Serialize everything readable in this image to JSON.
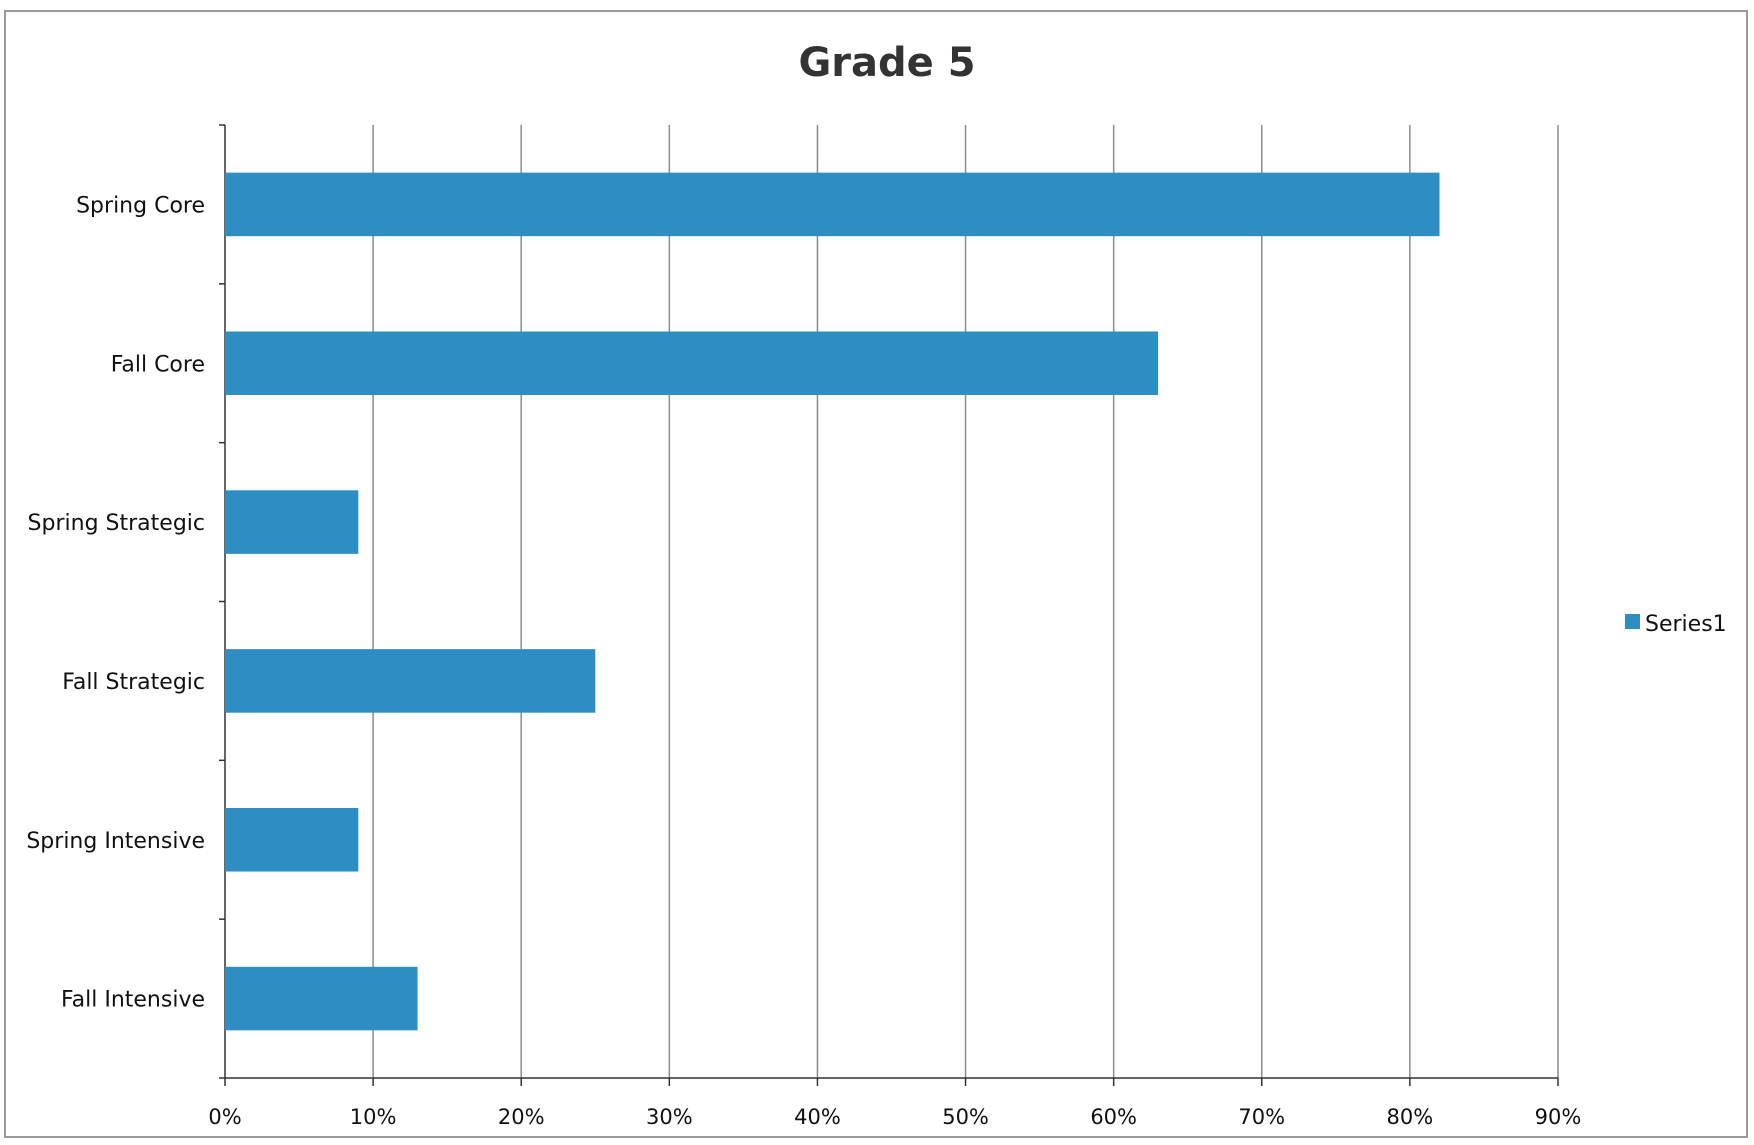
{
  "chart_data": {
    "type": "bar",
    "orientation": "horizontal",
    "title": "Grade 5",
    "xlabel": "",
    "ylabel": "",
    "categories": [
      "Spring Core",
      "Fall Core",
      "Spring Strategic",
      "Fall Strategic",
      "Spring Intensive",
      "Fall Intensive"
    ],
    "series": [
      {
        "name": "Series1",
        "values": [
          82,
          63,
          9,
          25,
          9,
          13
        ],
        "color": "#2e8ec4"
      }
    ],
    "xlim": [
      0,
      90
    ],
    "x_ticks": [
      "0%",
      "10%",
      "20%",
      "30%",
      "40%",
      "50%",
      "60%",
      "70%",
      "80%",
      "90%"
    ],
    "grid": "vertical",
    "legend": "right"
  }
}
